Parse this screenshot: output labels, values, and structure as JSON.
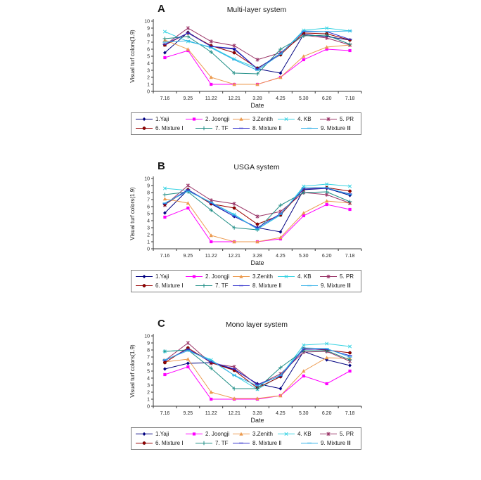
{
  "figure": {
    "xlabel": "Date",
    "ylabel": "Visual turf colors(1.9)",
    "background": "#ffffff",
    "legend_border_color": "#808080"
  },
  "chart_data": [
    {
      "type": "line",
      "panel_label": "A",
      "title": "Multi-layer system",
      "xlabel": "Date",
      "ylabel": "Visual turf colors(1.9)",
      "ylim": [
        0,
        10
      ],
      "grid": false,
      "legend_position": "bottom",
      "categories": [
        "7.16",
        "9.25",
        "11.22",
        "12.21",
        "3.28",
        "4.25",
        "5.30",
        "6.20",
        "7.18"
      ],
      "series": [
        {
          "name": "1.Yaji",
          "color": "#000080",
          "marker": "diamond",
          "values": [
            5.5,
            8.4,
            6.4,
            6.0,
            3.2,
            2.6,
            8.1,
            7.8,
            7.3
          ]
        },
        {
          "name": "2. Joongji",
          "color": "#FF00FF",
          "marker": "square",
          "values": [
            4.8,
            5.8,
            1.0,
            1.0,
            1.0,
            2.0,
            4.5,
            6.0,
            5.8
          ]
        },
        {
          "name": "3.Zenith",
          "color": "#EC9A4E",
          "marker": "triangle",
          "values": [
            7.3,
            6.0,
            2.0,
            1.0,
            1.0,
            2.0,
            5.0,
            6.3,
            6.6
          ]
        },
        {
          "name": "4. KB",
          "color": "#35D2E2",
          "marker": "x",
          "values": [
            8.5,
            7.1,
            6.3,
            4.6,
            3.3,
            5.3,
            8.7,
            9.0,
            8.6
          ]
        },
        {
          "name": "5. PR",
          "color": "#993366",
          "marker": "asterisk",
          "values": [
            6.6,
            9.0,
            7.1,
            6.5,
            4.5,
            5.5,
            8.0,
            7.6,
            6.6
          ]
        },
        {
          "name": "6. Mixture Ⅰ",
          "color": "#990000",
          "marker": "circle",
          "values": [
            6.6,
            8.3,
            6.5,
            5.5,
            3.3,
            5.2,
            8.3,
            8.2,
            7.3
          ]
        },
        {
          "name": "7. TF",
          "color": "#1C8C84",
          "marker": "plus",
          "values": [
            7.5,
            7.8,
            5.6,
            2.6,
            2.5,
            6.0,
            7.9,
            8.0,
            6.7
          ]
        },
        {
          "name": "8. Mixture Ⅱ",
          "color": "#3333CC",
          "marker": "dash",
          "values": [
            6.7,
            8.3,
            6.4,
            6.1,
            3.2,
            5.4,
            8.5,
            8.5,
            7.4
          ]
        },
        {
          "name": "9. Mixture Ⅲ",
          "color": "#33B0E8",
          "marker": "dash",
          "values": [
            7.0,
            7.2,
            6.2,
            4.5,
            3.0,
            5.3,
            8.6,
            8.5,
            8.6
          ]
        }
      ]
    },
    {
      "type": "line",
      "panel_label": "B",
      "title": "USGA system",
      "xlabel": "Date",
      "ylabel": "Visual turf colors(1.9)",
      "ylim": [
        0,
        10
      ],
      "grid": false,
      "legend_position": "bottom",
      "categories": [
        "7.16",
        "9.25",
        "11.22",
        "12.21",
        "3.28",
        "4.25",
        "5.30",
        "6.20",
        "7.18"
      ],
      "series": [
        {
          "name": "1.Yaji",
          "color": "#000080",
          "marker": "diamond",
          "values": [
            5.1,
            8.4,
            6.4,
            4.6,
            3.0,
            2.4,
            8.4,
            8.6,
            7.6
          ]
        },
        {
          "name": "2. Joongji",
          "color": "#FF00FF",
          "marker": "square",
          "values": [
            4.5,
            5.8,
            1.0,
            1.0,
            1.0,
            1.4,
            4.7,
            6.3,
            5.6
          ]
        },
        {
          "name": "3.Zenith",
          "color": "#EC9A4E",
          "marker": "triangle",
          "values": [
            7.1,
            6.5,
            1.9,
            1.0,
            1.0,
            1.6,
            5.1,
            6.8,
            6.5
          ]
        },
        {
          "name": "4. KB",
          "color": "#35D2E2",
          "marker": "x",
          "values": [
            8.6,
            8.3,
            6.6,
            4.9,
            2.8,
            4.8,
            8.9,
            9.2,
            8.9
          ]
        },
        {
          "name": "5. PR",
          "color": "#993366",
          "marker": "asterisk",
          "values": [
            6.2,
            9.0,
            6.9,
            6.4,
            4.6,
            5.3,
            8.0,
            7.7,
            6.5
          ]
        },
        {
          "name": "6. Mixture Ⅰ",
          "color": "#990000",
          "marker": "circle",
          "values": [
            6.3,
            8.4,
            6.4,
            5.8,
            3.5,
            4.8,
            8.5,
            8.7,
            8.2
          ]
        },
        {
          "name": "7. TF",
          "color": "#1C8C84",
          "marker": "plus",
          "values": [
            7.7,
            8.1,
            5.5,
            3.0,
            2.7,
            6.2,
            8.0,
            8.1,
            6.7
          ]
        },
        {
          "name": "8. Mixture Ⅱ",
          "color": "#3333CC",
          "marker": "dash",
          "values": [
            6.4,
            8.4,
            6.5,
            4.6,
            3.0,
            5.0,
            8.5,
            8.6,
            7.8
          ]
        },
        {
          "name": "9. Mixture Ⅲ",
          "color": "#33B0E8",
          "marker": "dash",
          "values": [
            6.5,
            8.2,
            6.6,
            4.8,
            2.8,
            4.9,
            8.7,
            8.7,
            7.7
          ]
        }
      ]
    },
    {
      "type": "line",
      "panel_label": "C",
      "title": "Mono layer system",
      "xlabel": "Date",
      "ylabel": "Visual turf colors(1.9)",
      "ylim": [
        0,
        10
      ],
      "grid": false,
      "legend_position": "bottom",
      "categories": [
        "7.16",
        "9.25",
        "11.22",
        "12.21",
        "3.28",
        "4.25",
        "5.30",
        "6.20",
        "7.18"
      ],
      "series": [
        {
          "name": "1.Yaji",
          "color": "#000080",
          "marker": "diamond",
          "values": [
            5.3,
            6.1,
            6.2,
            5.2,
            3.2,
            2.5,
            7.8,
            6.6,
            5.8
          ]
        },
        {
          "name": "2. Joongji",
          "color": "#FF00FF",
          "marker": "square",
          "values": [
            4.5,
            5.6,
            1.0,
            1.0,
            1.0,
            1.5,
            4.3,
            3.2,
            5.0
          ]
        },
        {
          "name": "3.Zenith",
          "color": "#EC9A4E",
          "marker": "triangle",
          "values": [
            6.3,
            6.7,
            2.0,
            1.1,
            1.1,
            1.5,
            5.0,
            6.9,
            6.8
          ]
        },
        {
          "name": "4. KB",
          "color": "#35D2E2",
          "marker": "x",
          "values": [
            7.8,
            8.0,
            6.6,
            4.4,
            2.4,
            4.3,
            8.7,
            8.9,
            8.5
          ]
        },
        {
          "name": "5. PR",
          "color": "#993366",
          "marker": "asterisk",
          "values": [
            6.5,
            9.0,
            6.1,
            5.6,
            3.0,
            4.6,
            7.7,
            7.8,
            6.4
          ]
        },
        {
          "name": "6. Mixture Ⅰ",
          "color": "#990000",
          "marker": "circle",
          "values": [
            6.2,
            8.3,
            6.2,
            5.1,
            2.6,
            4.2,
            8.2,
            8.0,
            7.6
          ]
        },
        {
          "name": "7. TF",
          "color": "#1C8C84",
          "marker": "plus",
          "values": [
            7.8,
            8.0,
            5.4,
            2.5,
            2.5,
            5.5,
            7.9,
            7.9,
            6.6
          ]
        },
        {
          "name": "8. Mixture Ⅱ",
          "color": "#3333CC",
          "marker": "dash",
          "values": [
            6.5,
            8.1,
            6.3,
            5.3,
            3.1,
            4.3,
            8.1,
            8.1,
            7.2
          ]
        },
        {
          "name": "9. Mixture Ⅲ",
          "color": "#33B0E8",
          "marker": "dash",
          "values": [
            6.6,
            7.9,
            6.5,
            4.4,
            2.9,
            4.4,
            8.3,
            8.2,
            7.0
          ]
        }
      ]
    }
  ]
}
